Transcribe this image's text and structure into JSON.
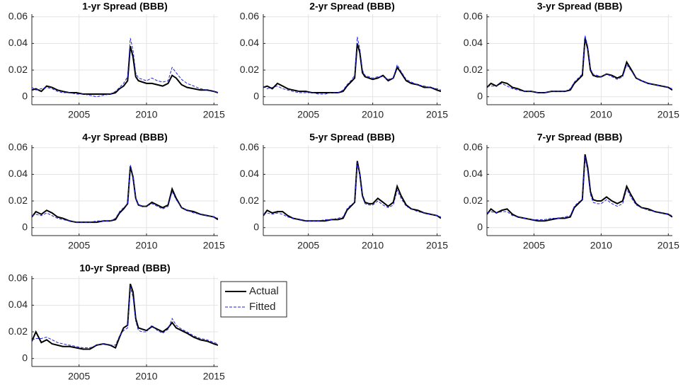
{
  "chart_data": [
    {
      "type": "line",
      "title": "1-yr Spread (BBB)",
      "grid": true,
      "x": [
        2001.5,
        2001.8,
        2002.2,
        2002.6,
        2003.0,
        2003.4,
        2003.8,
        2004.3,
        2004.8,
        2005.3,
        2005.8,
        2006.3,
        2006.8,
        2007.3,
        2007.7,
        2008.0,
        2008.3,
        2008.6,
        2008.8,
        2009.0,
        2009.2,
        2009.4,
        2009.7,
        2010.0,
        2010.4,
        2010.8,
        2011.2,
        2011.6,
        2011.9,
        2012.2,
        2012.6,
        2013.0,
        2013.5,
        2014.0,
        2014.5,
        2015.0,
        2015.3
      ],
      "xlim": [
        2001.5,
        2015.3
      ],
      "xticks": [
        2005,
        2010,
        2015
      ],
      "ylim": [
        -0.006,
        0.062
      ],
      "yticks": [
        0,
        0.02,
        0.04,
        0.06
      ],
      "series": [
        {
          "name": "Actual",
          "color": "#000000",
          "dash": "solid",
          "values": [
            0.005,
            0.006,
            0.004,
            0.008,
            0.007,
            0.005,
            0.004,
            0.003,
            0.003,
            0.002,
            0.002,
            0.002,
            0.002,
            0.002,
            0.003,
            0.006,
            0.008,
            0.012,
            0.038,
            0.03,
            0.015,
            0.012,
            0.011,
            0.01,
            0.01,
            0.009,
            0.008,
            0.01,
            0.016,
            0.014,
            0.009,
            0.007,
            0.006,
            0.005,
            0.005,
            0.004,
            0.003
          ]
        },
        {
          "name": "Fitted",
          "color": "#2020e0",
          "dash": "dashed",
          "values": [
            0.007,
            0.005,
            0.006,
            0.007,
            0.006,
            0.004,
            0.003,
            0.003,
            0.002,
            0.002,
            0.001,
            0.0,
            0.001,
            0.002,
            0.004,
            0.007,
            0.01,
            0.015,
            0.044,
            0.035,
            0.018,
            0.014,
            0.013,
            0.012,
            0.014,
            0.012,
            0.011,
            0.012,
            0.022,
            0.018,
            0.013,
            0.01,
            0.008,
            0.006,
            0.005,
            0.004,
            0.003
          ]
        }
      ]
    },
    {
      "type": "line",
      "title": "2-yr Spread (BBB)",
      "grid": true,
      "x": [
        2001.5,
        2001.8,
        2002.2,
        2002.6,
        2003.0,
        2003.4,
        2003.8,
        2004.3,
        2004.8,
        2005.3,
        2005.8,
        2006.3,
        2006.8,
        2007.3,
        2007.7,
        2008.0,
        2008.3,
        2008.6,
        2008.8,
        2009.0,
        2009.2,
        2009.4,
        2009.7,
        2010.0,
        2010.4,
        2010.8,
        2011.2,
        2011.6,
        2011.9,
        2012.2,
        2012.6,
        2013.0,
        2013.5,
        2014.0,
        2014.5,
        2015.0,
        2015.3
      ],
      "xlim": [
        2001.5,
        2015.3
      ],
      "xticks": [
        2005,
        2010,
        2015
      ],
      "ylim": [
        -0.006,
        0.062
      ],
      "yticks": [
        0,
        0.02,
        0.04,
        0.06
      ],
      "series": [
        {
          "name": "Actual",
          "color": "#000000",
          "dash": "solid",
          "values": [
            0.007,
            0.008,
            0.006,
            0.01,
            0.008,
            0.006,
            0.005,
            0.004,
            0.004,
            0.003,
            0.003,
            0.003,
            0.003,
            0.003,
            0.004,
            0.008,
            0.011,
            0.014,
            0.04,
            0.033,
            0.018,
            0.015,
            0.014,
            0.013,
            0.014,
            0.016,
            0.012,
            0.014,
            0.022,
            0.018,
            0.012,
            0.01,
            0.009,
            0.007,
            0.007,
            0.005,
            0.004
          ]
        },
        {
          "name": "Fitted",
          "color": "#2020e0",
          "dash": "dashed",
          "values": [
            0.008,
            0.006,
            0.007,
            0.008,
            0.006,
            0.005,
            0.004,
            0.003,
            0.003,
            0.003,
            0.002,
            0.002,
            0.003,
            0.003,
            0.005,
            0.009,
            0.012,
            0.016,
            0.045,
            0.036,
            0.02,
            0.016,
            0.015,
            0.014,
            0.015,
            0.015,
            0.013,
            0.014,
            0.024,
            0.019,
            0.013,
            0.011,
            0.009,
            0.008,
            0.007,
            0.006,
            0.005
          ]
        }
      ]
    },
    {
      "type": "line",
      "title": "3-yr Spread (BBB)",
      "grid": true,
      "x": [
        2001.5,
        2001.8,
        2002.2,
        2002.6,
        2003.0,
        2003.4,
        2003.8,
        2004.3,
        2004.8,
        2005.3,
        2005.8,
        2006.3,
        2006.8,
        2007.3,
        2007.7,
        2008.0,
        2008.3,
        2008.6,
        2008.8,
        2009.0,
        2009.2,
        2009.4,
        2009.7,
        2010.0,
        2010.4,
        2010.8,
        2011.2,
        2011.6,
        2011.9,
        2012.2,
        2012.6,
        2013.0,
        2013.5,
        2014.0,
        2014.5,
        2015.0,
        2015.3
      ],
      "xlim": [
        2001.5,
        2015.3
      ],
      "xticks": [
        2005,
        2010,
        2015
      ],
      "ylim": [
        -0.006,
        0.062
      ],
      "yticks": [
        0,
        0.02,
        0.04,
        0.06
      ],
      "series": [
        {
          "name": "Actual",
          "color": "#000000",
          "dash": "solid",
          "values": [
            0.007,
            0.01,
            0.008,
            0.011,
            0.01,
            0.007,
            0.006,
            0.004,
            0.004,
            0.003,
            0.003,
            0.004,
            0.004,
            0.004,
            0.005,
            0.01,
            0.013,
            0.016,
            0.044,
            0.036,
            0.02,
            0.016,
            0.015,
            0.015,
            0.017,
            0.016,
            0.014,
            0.016,
            0.026,
            0.021,
            0.014,
            0.012,
            0.01,
            0.009,
            0.008,
            0.007,
            0.005
          ]
        },
        {
          "name": "Fitted",
          "color": "#2020e0",
          "dash": "dashed",
          "values": [
            0.008,
            0.008,
            0.008,
            0.01,
            0.008,
            0.006,
            0.005,
            0.004,
            0.004,
            0.003,
            0.003,
            0.004,
            0.004,
            0.004,
            0.006,
            0.011,
            0.014,
            0.017,
            0.046,
            0.038,
            0.021,
            0.017,
            0.016,
            0.015,
            0.017,
            0.015,
            0.013,
            0.015,
            0.024,
            0.02,
            0.014,
            0.012,
            0.01,
            0.009,
            0.008,
            0.007,
            0.006
          ]
        }
      ]
    },
    {
      "type": "line",
      "title": "4-yr Spread (BBB)",
      "grid": true,
      "x": [
        2001.5,
        2001.8,
        2002.2,
        2002.6,
        2003.0,
        2003.4,
        2003.8,
        2004.3,
        2004.8,
        2005.3,
        2005.8,
        2006.3,
        2006.8,
        2007.3,
        2007.7,
        2008.0,
        2008.3,
        2008.6,
        2008.8,
        2009.0,
        2009.2,
        2009.4,
        2009.7,
        2010.0,
        2010.4,
        2010.8,
        2011.2,
        2011.6,
        2011.9,
        2012.2,
        2012.6,
        2013.0,
        2013.5,
        2014.0,
        2014.5,
        2015.0,
        2015.3
      ],
      "xlim": [
        2001.5,
        2015.3
      ],
      "xticks": [
        2005,
        2010,
        2015
      ],
      "ylim": [
        -0.006,
        0.062
      ],
      "yticks": [
        0,
        0.02,
        0.04,
        0.06
      ],
      "series": [
        {
          "name": "Actual",
          "color": "#000000",
          "dash": "solid",
          "values": [
            0.008,
            0.012,
            0.01,
            0.013,
            0.011,
            0.008,
            0.007,
            0.005,
            0.004,
            0.004,
            0.004,
            0.004,
            0.005,
            0.005,
            0.006,
            0.011,
            0.014,
            0.018,
            0.046,
            0.038,
            0.022,
            0.017,
            0.016,
            0.016,
            0.019,
            0.017,
            0.015,
            0.017,
            0.029,
            0.022,
            0.015,
            0.013,
            0.012,
            0.01,
            0.009,
            0.008,
            0.006
          ]
        },
        {
          "name": "Fitted",
          "color": "#2020e0",
          "dash": "dashed",
          "values": [
            0.009,
            0.01,
            0.009,
            0.011,
            0.009,
            0.007,
            0.006,
            0.005,
            0.004,
            0.004,
            0.004,
            0.005,
            0.005,
            0.005,
            0.007,
            0.012,
            0.015,
            0.018,
            0.047,
            0.039,
            0.022,
            0.017,
            0.016,
            0.016,
            0.018,
            0.016,
            0.014,
            0.016,
            0.027,
            0.021,
            0.015,
            0.013,
            0.011,
            0.01,
            0.009,
            0.008,
            0.007
          ]
        }
      ]
    },
    {
      "type": "line",
      "title": "5-yr Spread (BBB)",
      "grid": true,
      "x": [
        2001.5,
        2001.8,
        2002.2,
        2002.6,
        2003.0,
        2003.4,
        2003.8,
        2004.3,
        2004.8,
        2005.3,
        2005.8,
        2006.3,
        2006.8,
        2007.3,
        2007.7,
        2008.0,
        2008.3,
        2008.6,
        2008.8,
        2009.0,
        2009.2,
        2009.4,
        2009.7,
        2010.0,
        2010.4,
        2010.8,
        2011.2,
        2011.6,
        2011.9,
        2012.2,
        2012.6,
        2013.0,
        2013.5,
        2014.0,
        2014.5,
        2015.0,
        2015.3
      ],
      "xlim": [
        2001.5,
        2015.3
      ],
      "xticks": [
        2005,
        2010,
        2015
      ],
      "ylim": [
        -0.006,
        0.062
      ],
      "yticks": [
        0,
        0.02,
        0.04,
        0.06
      ],
      "series": [
        {
          "name": "Actual",
          "color": "#000000",
          "dash": "solid",
          "values": [
            0.009,
            0.013,
            0.011,
            0.012,
            0.012,
            0.009,
            0.007,
            0.006,
            0.005,
            0.005,
            0.005,
            0.005,
            0.006,
            0.006,
            0.007,
            0.013,
            0.016,
            0.019,
            0.05,
            0.04,
            0.024,
            0.019,
            0.018,
            0.018,
            0.022,
            0.019,
            0.016,
            0.019,
            0.031,
            0.024,
            0.017,
            0.014,
            0.013,
            0.011,
            0.01,
            0.009,
            0.007
          ]
        },
        {
          "name": "Fitted",
          "color": "#2020e0",
          "dash": "dashed",
          "values": [
            0.01,
            0.011,
            0.01,
            0.011,
            0.01,
            0.008,
            0.007,
            0.006,
            0.005,
            0.005,
            0.005,
            0.006,
            0.006,
            0.007,
            0.008,
            0.014,
            0.017,
            0.019,
            0.049,
            0.039,
            0.023,
            0.018,
            0.017,
            0.017,
            0.02,
            0.017,
            0.015,
            0.017,
            0.028,
            0.022,
            0.016,
            0.014,
            0.012,
            0.011,
            0.01,
            0.009,
            0.008
          ]
        }
      ]
    },
    {
      "type": "line",
      "title": "7-yr Spread (BBB)",
      "grid": true,
      "x": [
        2001.5,
        2001.8,
        2002.2,
        2002.6,
        2003.0,
        2003.4,
        2003.8,
        2004.3,
        2004.8,
        2005.3,
        2005.8,
        2006.3,
        2006.8,
        2007.3,
        2007.7,
        2008.0,
        2008.3,
        2008.6,
        2008.8,
        2009.0,
        2009.2,
        2009.4,
        2009.7,
        2010.0,
        2010.4,
        2010.8,
        2011.2,
        2011.6,
        2011.9,
        2012.2,
        2012.6,
        2013.0,
        2013.5,
        2014.0,
        2014.5,
        2015.0,
        2015.3
      ],
      "xlim": [
        2001.5,
        2015.3
      ],
      "xticks": [
        2005,
        2010,
        2015
      ],
      "ylim": [
        -0.006,
        0.062
      ],
      "yticks": [
        0,
        0.02,
        0.04,
        0.06
      ],
      "series": [
        {
          "name": "Actual",
          "color": "#000000",
          "dash": "solid",
          "values": [
            0.01,
            0.014,
            0.011,
            0.013,
            0.014,
            0.01,
            0.008,
            0.007,
            0.006,
            0.005,
            0.005,
            0.006,
            0.007,
            0.007,
            0.008,
            0.015,
            0.018,
            0.021,
            0.055,
            0.045,
            0.027,
            0.021,
            0.02,
            0.02,
            0.023,
            0.02,
            0.018,
            0.02,
            0.031,
            0.025,
            0.018,
            0.015,
            0.014,
            0.012,
            0.011,
            0.01,
            0.008
          ]
        },
        {
          "name": "Fitted",
          "color": "#2020e0",
          "dash": "dashed",
          "values": [
            0.011,
            0.012,
            0.011,
            0.012,
            0.012,
            0.009,
            0.008,
            0.007,
            0.006,
            0.006,
            0.006,
            0.007,
            0.007,
            0.008,
            0.009,
            0.016,
            0.019,
            0.021,
            0.053,
            0.042,
            0.025,
            0.019,
            0.018,
            0.018,
            0.021,
            0.018,
            0.016,
            0.018,
            0.029,
            0.023,
            0.017,
            0.015,
            0.013,
            0.012,
            0.011,
            0.01,
            0.009
          ]
        }
      ]
    },
    {
      "type": "line",
      "title": "10-yr Spread (BBB)",
      "grid": true,
      "legend": "outside-right",
      "x": [
        2001.5,
        2001.8,
        2002.2,
        2002.6,
        2003.0,
        2003.4,
        2003.8,
        2004.3,
        2004.8,
        2005.3,
        2005.8,
        2006.3,
        2006.8,
        2007.3,
        2007.7,
        2008.0,
        2008.3,
        2008.6,
        2008.8,
        2009.0,
        2009.2,
        2009.4,
        2009.7,
        2010.0,
        2010.4,
        2010.8,
        2011.2,
        2011.6,
        2011.9,
        2012.2,
        2012.6,
        2013.0,
        2013.5,
        2014.0,
        2014.5,
        2015.0,
        2015.3
      ],
      "xlim": [
        2001.5,
        2015.3
      ],
      "xticks": [
        2005,
        2010,
        2015
      ],
      "ylim": [
        -0.006,
        0.062
      ],
      "yticks": [
        0,
        0.02,
        0.04,
        0.06
      ],
      "series": [
        {
          "name": "Actual",
          "color": "#000000",
          "dash": "solid",
          "values": [
            0.013,
            0.02,
            0.012,
            0.014,
            0.011,
            0.01,
            0.009,
            0.009,
            0.008,
            0.007,
            0.007,
            0.01,
            0.011,
            0.01,
            0.008,
            0.016,
            0.023,
            0.025,
            0.056,
            0.05,
            0.03,
            0.023,
            0.022,
            0.021,
            0.024,
            0.022,
            0.02,
            0.023,
            0.027,
            0.023,
            0.021,
            0.019,
            0.016,
            0.014,
            0.013,
            0.011,
            0.01
          ]
        },
        {
          "name": "Fitted",
          "color": "#2020e0",
          "dash": "dashed",
          "values": [
            0.014,
            0.015,
            0.015,
            0.016,
            0.014,
            0.012,
            0.011,
            0.01,
            0.009,
            0.008,
            0.008,
            0.01,
            0.011,
            0.01,
            0.01,
            0.017,
            0.021,
            0.023,
            0.054,
            0.046,
            0.028,
            0.021,
            0.02,
            0.02,
            0.025,
            0.021,
            0.019,
            0.022,
            0.03,
            0.025,
            0.022,
            0.02,
            0.017,
            0.015,
            0.014,
            0.012,
            0.011
          ]
        }
      ]
    }
  ]
}
